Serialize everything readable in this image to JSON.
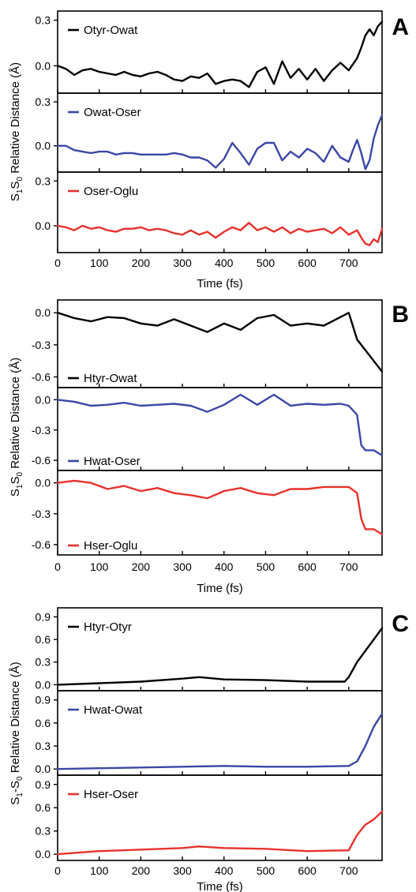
{
  "chart_data": [
    {
      "panel": "A",
      "type": "line",
      "xlabel": "Time (fs)",
      "ylabel": "S1S0 Relative Distance (Å)",
      "xlim": [
        0,
        780
      ],
      "xticks": [
        "0",
        "100",
        "200",
        "300",
        "400",
        "500",
        "600",
        "700"
      ],
      "subplots": [
        {
          "series": [
            {
              "name": "Otyr-Owat",
              "color": "#000000",
              "x": [
                0,
                20,
                40,
                60,
                80,
                100,
                120,
                140,
                160,
                180,
                200,
                220,
                240,
                260,
                280,
                300,
                320,
                340,
                360,
                380,
                400,
                420,
                440,
                460,
                480,
                500,
                520,
                540,
                560,
                580,
                600,
                620,
                640,
                660,
                680,
                700,
                720,
                730,
                740,
                750,
                760,
                770,
                780
              ],
              "y": [
                0,
                -0.02,
                -0.06,
                -0.03,
                -0.02,
                -0.04,
                -0.05,
                -0.06,
                -0.04,
                -0.06,
                -0.07,
                -0.05,
                -0.04,
                -0.06,
                -0.09,
                -0.1,
                -0.07,
                -0.08,
                -0.05,
                -0.12,
                -0.1,
                -0.09,
                -0.1,
                -0.14,
                -0.04,
                -0.01,
                -0.12,
                0.03,
                -0.08,
                -0.02,
                -0.09,
                -0.02,
                -0.1,
                -0.03,
                0.02,
                -0.03,
                0.05,
                0.12,
                0.2,
                0.24,
                0.2,
                0.26,
                0.29
              ]
            }
          ],
          "ylim": [
            -0.18,
            0.36
          ],
          "yticks": [
            "0.3",
            "0.0"
          ]
        },
        {
          "series": [
            {
              "name": "Owat-Oser",
              "color": "#3b47a6",
              "x": [
                0,
                20,
                40,
                60,
                80,
                100,
                120,
                140,
                160,
                180,
                200,
                220,
                240,
                260,
                280,
                300,
                320,
                340,
                360,
                380,
                400,
                420,
                440,
                460,
                480,
                500,
                520,
                540,
                560,
                580,
                600,
                620,
                640,
                660,
                680,
                700,
                710,
                720,
                730,
                740,
                750,
                760,
                770,
                780
              ],
              "y": [
                0,
                0,
                -0.03,
                -0.04,
                -0.05,
                -0.04,
                -0.04,
                -0.06,
                -0.05,
                -0.05,
                -0.06,
                -0.06,
                -0.06,
                -0.06,
                -0.05,
                -0.06,
                -0.08,
                -0.08,
                -0.1,
                -0.15,
                -0.09,
                0.02,
                -0.05,
                -0.13,
                -0.02,
                0.02,
                0.02,
                -0.1,
                -0.04,
                -0.08,
                -0.02,
                -0.05,
                -0.11,
                0.0,
                -0.08,
                -0.11,
                -0.03,
                0.04,
                -0.05,
                -0.16,
                -0.1,
                0.05,
                0.14,
                0.21
              ]
            }
          ],
          "ylim": [
            -0.18,
            0.36
          ],
          "yticks": [
            "0.3",
            "0.0"
          ]
        },
        {
          "series": [
            {
              "name": "Oser-Oglu",
              "color": "#e8322c",
              "x": [
                0,
                20,
                40,
                60,
                80,
                100,
                120,
                140,
                160,
                180,
                200,
                220,
                240,
                260,
                280,
                300,
                320,
                340,
                360,
                380,
                400,
                420,
                440,
                460,
                480,
                500,
                520,
                540,
                560,
                580,
                600,
                620,
                640,
                660,
                680,
                700,
                720,
                730,
                740,
                750,
                760,
                770,
                780
              ],
              "y": [
                0,
                -0.01,
                -0.03,
                0.0,
                -0.02,
                -0.01,
                -0.03,
                -0.04,
                -0.02,
                -0.02,
                -0.01,
                -0.03,
                -0.02,
                -0.03,
                -0.05,
                -0.06,
                -0.03,
                -0.06,
                -0.04,
                -0.08,
                -0.04,
                -0.01,
                -0.03,
                0.02,
                -0.03,
                -0.01,
                -0.04,
                -0.01,
                -0.05,
                -0.02,
                -0.04,
                -0.03,
                -0.02,
                -0.05,
                -0.01,
                -0.06,
                -0.03,
                -0.08,
                -0.12,
                -0.13,
                -0.09,
                -0.11,
                -0.02
              ]
            }
          ],
          "ylim": [
            -0.18,
            0.36
          ],
          "yticks": [
            "0.3",
            "0.0"
          ]
        }
      ]
    },
    {
      "panel": "B",
      "type": "line",
      "xlabel": "Time (fs)",
      "ylabel": "S1S0 Relative Distance (Å)",
      "xlim": [
        0,
        780
      ],
      "xticks": [
        "0",
        "100",
        "200",
        "300",
        "400",
        "500",
        "600",
        "700"
      ],
      "subplots": [
        {
          "series": [
            {
              "name": "Htyr-Owat",
              "color": "#000000",
              "x": [
                0,
                40,
                80,
                120,
                160,
                200,
                240,
                280,
                320,
                360,
                400,
                440,
                480,
                520,
                560,
                600,
                640,
                680,
                700,
                720,
                740,
                760,
                780
              ],
              "y": [
                0,
                -0.05,
                -0.08,
                -0.04,
                -0.05,
                -0.1,
                -0.12,
                -0.06,
                -0.12,
                -0.18,
                -0.1,
                -0.16,
                -0.05,
                -0.02,
                -0.12,
                -0.1,
                -0.12,
                -0.04,
                0.0,
                -0.25,
                -0.35,
                -0.45,
                -0.55
              ]
            }
          ],
          "ylim": [
            -0.7,
            0.12
          ],
          "yticks": [
            "0.0",
            "-0.3",
            "-0.6"
          ]
        },
        {
          "series": [
            {
              "name": "Hwat-Oser",
              "color": "#3b47a6",
              "x": [
                0,
                40,
                80,
                120,
                160,
                200,
                240,
                280,
                320,
                360,
                400,
                440,
                480,
                520,
                560,
                600,
                640,
                680,
                700,
                720,
                730,
                740,
                760,
                780
              ],
              "y": [
                0,
                -0.02,
                -0.06,
                -0.05,
                -0.03,
                -0.06,
                -0.05,
                -0.04,
                -0.06,
                -0.12,
                -0.05,
                0.05,
                -0.05,
                0.05,
                -0.06,
                -0.04,
                -0.05,
                -0.04,
                -0.06,
                -0.15,
                -0.45,
                -0.5,
                -0.5,
                -0.55
              ]
            }
          ],
          "ylim": [
            -0.7,
            0.12
          ],
          "yticks": [
            "0.0",
            "-0.3",
            "-0.6"
          ]
        },
        {
          "series": [
            {
              "name": "Hser-Oglu",
              "color": "#e8322c",
              "x": [
                0,
                40,
                80,
                120,
                160,
                200,
                240,
                280,
                320,
                360,
                400,
                440,
                480,
                520,
                560,
                600,
                640,
                680,
                700,
                720,
                730,
                740,
                760,
                780
              ],
              "y": [
                0,
                0.02,
                0.0,
                -0.06,
                -0.03,
                -0.08,
                -0.05,
                -0.1,
                -0.12,
                -0.15,
                -0.08,
                -0.05,
                -0.1,
                -0.12,
                -0.06,
                -0.06,
                -0.04,
                -0.04,
                -0.04,
                -0.1,
                -0.35,
                -0.45,
                -0.45,
                -0.5
              ]
            }
          ],
          "ylim": [
            -0.7,
            0.12
          ],
          "yticks": [
            "0.0",
            "-0.3",
            "-0.6"
          ]
        }
      ]
    },
    {
      "panel": "C",
      "type": "line",
      "xlabel": "Time (fs)",
      "ylabel": "S1-S0 Relative Distance (Å)",
      "xlim": [
        0,
        780
      ],
      "xticks": [
        "0",
        "100",
        "200",
        "300",
        "400",
        "500",
        "600",
        "700"
      ],
      "subplots": [
        {
          "series": [
            {
              "name": "Htyr-Otyr",
              "color": "#000000",
              "x": [
                0,
                100,
                200,
                300,
                340,
                400,
                500,
                600,
                690,
                700,
                720,
                740,
                760,
                780
              ],
              "y": [
                0,
                0.02,
                0.04,
                0.08,
                0.1,
                0.07,
                0.06,
                0.04,
                0.04,
                0.1,
                0.3,
                0.45,
                0.6,
                0.75
              ]
            }
          ],
          "ylim": [
            -0.08,
            1.02
          ],
          "yticks": [
            "0.9",
            "0.6",
            "0.3",
            "0.0"
          ]
        },
        {
          "series": [
            {
              "name": "Hwat-Owat",
              "color": "#3b47a6",
              "x": [
                0,
                100,
                200,
                300,
                400,
                500,
                600,
                700,
                720,
                740,
                760,
                780
              ],
              "y": [
                0,
                0.01,
                0.02,
                0.03,
                0.04,
                0.03,
                0.03,
                0.04,
                0.1,
                0.3,
                0.55,
                0.72
              ]
            }
          ],
          "ylim": [
            -0.08,
            1.02
          ],
          "yticks": [
            "0.9",
            "0.6",
            "0.3",
            "0.0"
          ]
        },
        {
          "series": [
            {
              "name": "Hser-Oser",
              "color": "#e8322c",
              "x": [
                0,
                100,
                200,
                300,
                340,
                400,
                500,
                600,
                700,
                720,
                740,
                760,
                780
              ],
              "y": [
                0,
                0.04,
                0.06,
                0.08,
                0.1,
                0.08,
                0.07,
                0.04,
                0.05,
                0.25,
                0.38,
                0.45,
                0.55
              ]
            }
          ],
          "ylim": [
            -0.08,
            1.02
          ],
          "yticks": [
            "0.9",
            "0.6",
            "0.3",
            "0.0"
          ]
        }
      ]
    }
  ]
}
